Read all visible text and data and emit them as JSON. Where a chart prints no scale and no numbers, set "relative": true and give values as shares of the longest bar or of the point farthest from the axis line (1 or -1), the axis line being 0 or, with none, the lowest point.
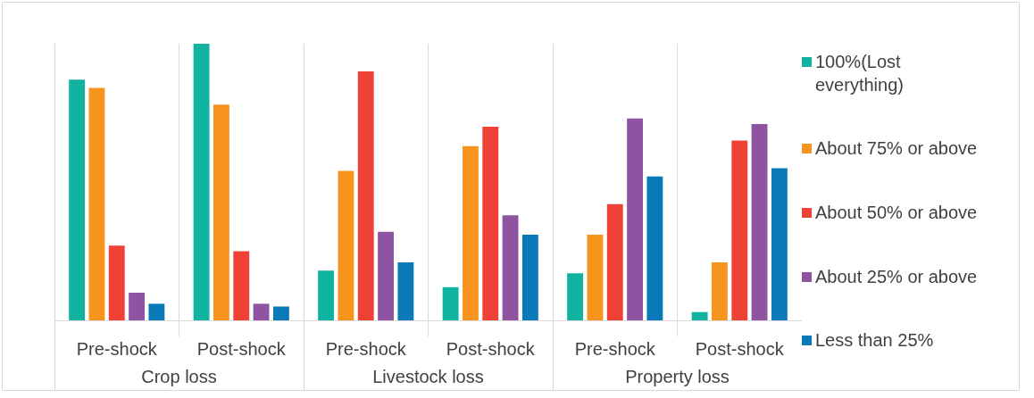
{
  "chart_data": {
    "type": "bar",
    "relative": true,
    "categories": [
      "Pre-shock",
      "Post-shock",
      "Pre-shock",
      "Post-shock",
      "Pre-shock",
      "Post-shock"
    ],
    "annotations": [
      "Crop loss",
      "Livestock loss",
      "Property loss"
    ],
    "series": [
      {
        "name": "100%(Lost everything)",
        "color": "#0fb3a0",
        "values": [
          0.87,
          1,
          0.18,
          0.12,
          0.17,
          0.03
        ]
      },
      {
        "name": "About 75% or above",
        "color": "#f7941d",
        "values": [
          0.84,
          0.78,
          0.54,
          0.63,
          0.31,
          0.21
        ]
      },
      {
        "name": "About 50% or above",
        "color": "#ef4136",
        "values": [
          0.27,
          0.25,
          0.9,
          0.7,
          0.42,
          0.65
        ]
      },
      {
        "name": "About 25% or above",
        "color": "#8e54a2",
        "values": [
          0.1,
          0.06,
          0.32,
          0.38,
          0.73,
          0.71
        ]
      },
      {
        "name": "Less than 25%",
        "color": "#0a79b8",
        "values": [
          0.06,
          0.05,
          0.21,
          0.31,
          0.52,
          0.55
        ]
      }
    ],
    "grid": "x",
    "legend": "right"
  }
}
